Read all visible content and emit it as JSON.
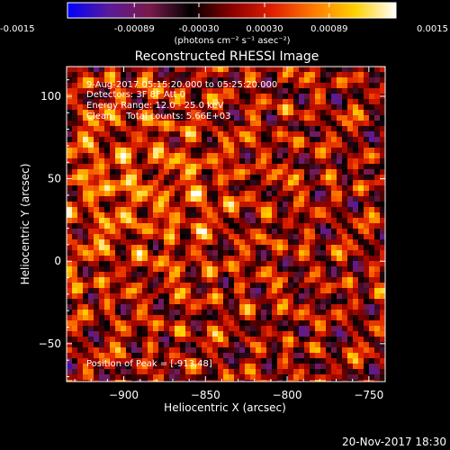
{
  "footer": {
    "timestamp": "20-Nov-2017 18:30"
  },
  "colorbar": {
    "ticks": [
      "-0.0015",
      "-0.00089",
      "-0.00030",
      "0.00030",
      "0.00089",
      "0.0015"
    ],
    "tick_values": [
      -0.0015,
      -0.00089,
      -0.0003,
      0.0003,
      0.00089,
      0.0015
    ],
    "range": [
      -0.0015,
      0.0015
    ],
    "unit_label": "(photons cm⁻² s⁻¹ asec⁻²)",
    "colormap_stops": [
      "#0000ff",
      "#5a1a9a",
      "#7a1a4a",
      "#000000",
      "#8a0000",
      "#e02000",
      "#ff7a00",
      "#ffd000",
      "#ffffff"
    ]
  },
  "chart_data": {
    "type": "heatmap",
    "title": "Reconstructed RHESSI Image",
    "xlabel": "Heliocentric X (arcsec)",
    "ylabel": "Heliocentric Y (arcsec)",
    "xlim": [
      -935,
      -740
    ],
    "ylim": [
      -73,
      118
    ],
    "x_ticks": [
      -900,
      -850,
      -800,
      -750
    ],
    "y_ticks": [
      -50,
      0,
      50,
      100
    ],
    "grid": false,
    "annotations": [
      "9-Aug-2017 05:15:20.000 to 05:25:20.000",
      "Detectors: 3F 8F Att 0",
      "Energy Range: 12.0 - 25.0 keV",
      "Clean     Total counts: 5.66E+03",
      "Position of Peak = [-913,48]"
    ],
    "peak": {
      "x": -913,
      "y": 48
    }
  }
}
